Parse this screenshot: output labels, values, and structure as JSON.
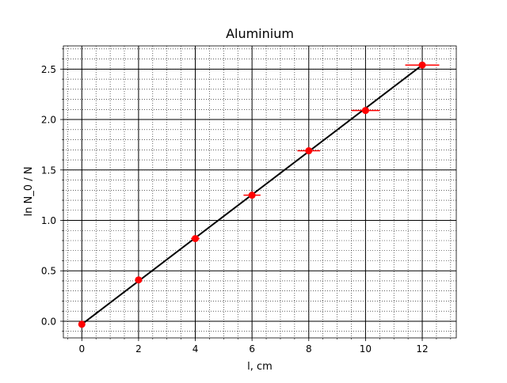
{
  "chart_data": {
    "type": "scatter",
    "title": "Aluminium",
    "xlabel": "l, cm",
    "ylabel": "ln N_0 / N",
    "xlim": [
      -0.65,
      13.2
    ],
    "ylim": [
      -0.165,
      2.73
    ],
    "x_ticks": [
      0,
      2,
      4,
      6,
      8,
      10,
      12
    ],
    "x_tick_labels": [
      "0",
      "2",
      "4",
      "6",
      "8",
      "10",
      "12"
    ],
    "y_ticks": [
      0.0,
      0.5,
      1.0,
      1.5,
      2.0,
      2.5
    ],
    "y_tick_labels": [
      "0.0",
      "0.5",
      "1.0",
      "1.5",
      "2.0",
      "2.5"
    ],
    "grid": {
      "major": true,
      "minor": true,
      "major_style": "solid",
      "minor_style": "dotted"
    },
    "series": [
      {
        "kind": "points",
        "x": [
          0,
          2,
          4,
          6,
          8,
          10,
          12
        ],
        "y": [
          -0.03,
          0.41,
          0.82,
          1.25,
          1.69,
          2.09,
          2.54
        ],
        "xerr": [
          0.0,
          0.05,
          0.15,
          0.3,
          0.4,
          0.5,
          0.6
        ],
        "color": "#ff0000"
      },
      {
        "kind": "fit_line",
        "x": [
          0,
          12
        ],
        "y": [
          -0.03,
          2.54
        ],
        "color": "#000000"
      }
    ],
    "colors": {
      "points": "#ff0000",
      "fit": "#000000",
      "grid": "#000000"
    }
  }
}
